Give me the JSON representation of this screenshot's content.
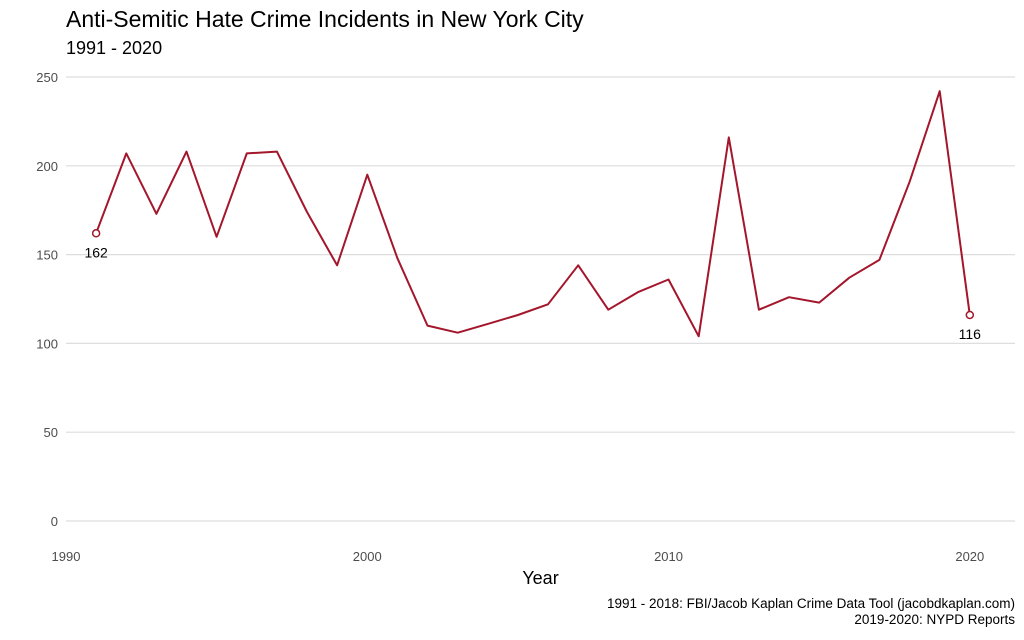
{
  "title": "Anti-Semitic Hate Crime Incidents in New York City",
  "subtitle": "1991 - 2020",
  "caption_line1": "1991 - 2018: FBI/Jacob Kaplan Crime Data Tool (jacobdkaplan.com)",
  "caption_line2": "2019-2020: NYPD Reports",
  "colors": {
    "line": "#a3162b",
    "grid": "#dedede",
    "tick": "#4d4d4d"
  },
  "chart_data": {
    "type": "line",
    "title": "Anti-Semitic Hate Crime Incidents in New York City",
    "subtitle": "1991 - 2020",
    "xlabel": "Year",
    "ylabel": "",
    "xlim": [
      1990,
      2021.5
    ],
    "ylim": [
      0,
      250
    ],
    "xticks": [
      1990,
      2000,
      2010,
      2020
    ],
    "yticks": [
      0,
      50,
      100,
      150,
      200,
      250
    ],
    "grid": "horizontal",
    "x": [
      1991,
      1992,
      1993,
      1994,
      1995,
      1996,
      1997,
      1998,
      1999,
      2000,
      2001,
      2002,
      2003,
      2004,
      2005,
      2006,
      2007,
      2008,
      2009,
      2010,
      2011,
      2012,
      2013,
      2014,
      2015,
      2016,
      2017,
      2018,
      2019,
      2020
    ],
    "y": [
      162,
      207,
      173,
      208,
      160,
      207,
      208,
      174,
      144,
      195,
      148,
      110,
      106,
      111,
      116,
      122,
      144,
      119,
      129,
      136,
      104,
      216,
      119,
      126,
      123,
      137,
      147,
      191,
      242,
      116
    ],
    "labeled_points": [
      {
        "x": 1991,
        "y": 162,
        "label": "162"
      },
      {
        "x": 2020,
        "y": 116,
        "label": "116"
      }
    ]
  }
}
